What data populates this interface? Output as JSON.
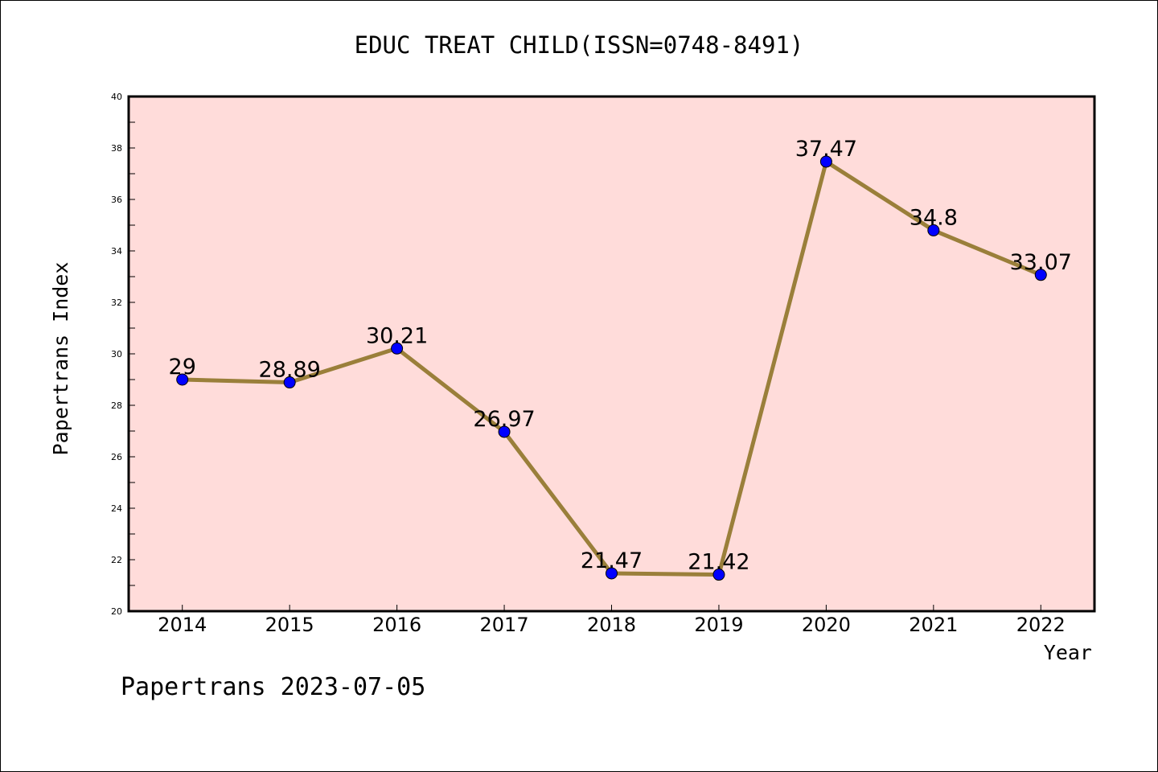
{
  "chart_data": {
    "type": "line",
    "title": "EDUC TREAT CHILD(ISSN=0748-8491)",
    "xlabel": "Year",
    "ylabel": "Papertrans Index",
    "x": [
      "2014",
      "2015",
      "2016",
      "2017",
      "2018",
      "2019",
      "2020",
      "2021",
      "2022"
    ],
    "series": [
      {
        "values": [
          29,
          28.89,
          30.21,
          26.97,
          21.47,
          21.42,
          37.47,
          34.8,
          33.07
        ],
        "labels": [
          "29",
          "28.89",
          "30.21",
          "26.97",
          "21.47",
          "21.42",
          "37.47",
          "34.8",
          "33.07"
        ]
      }
    ],
    "ylim": [
      20,
      40
    ],
    "yticks": [
      20,
      22,
      24,
      26,
      28,
      30,
      32,
      34,
      36,
      38,
      40
    ],
    "grid": false,
    "footer": "Papertrans 2023-07-05",
    "colors": {
      "plot_background": "#ffdcda",
      "line": "#9a7f3a",
      "marker": "#0000ff",
      "axis": "#000000"
    }
  }
}
